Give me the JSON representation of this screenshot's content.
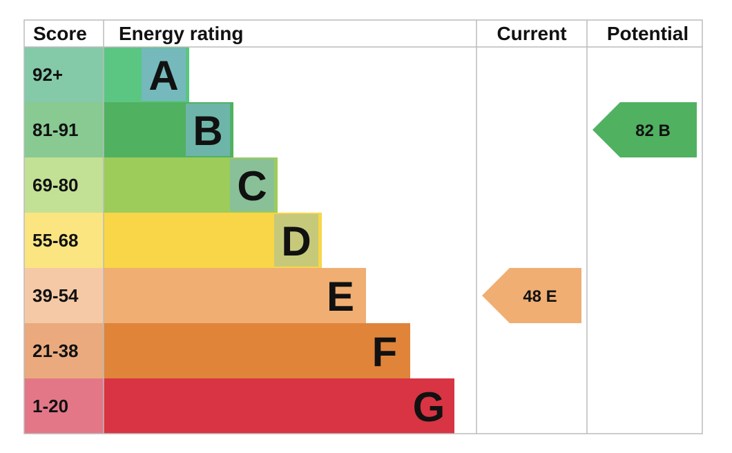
{
  "chart_data": {
    "type": "bar",
    "headers": {
      "score": "Score",
      "rating": "Energy rating",
      "current": "Current",
      "potential": "Potential"
    },
    "bands": [
      {
        "letter": "A",
        "range": "92+",
        "color": "#5ac682",
        "tint": "#84c9a8"
      },
      {
        "letter": "B",
        "range": "81-91",
        "color": "#50b161",
        "tint": "#88ca91"
      },
      {
        "letter": "C",
        "range": "69-80",
        "color": "#9dcc5b",
        "tint": "#c2e195"
      },
      {
        "letter": "D",
        "range": "55-68",
        "color": "#f8d647",
        "tint": "#fbe581"
      },
      {
        "letter": "E",
        "range": "39-54",
        "color": "#f0ae72",
        "tint": "#f6c9a6"
      },
      {
        "letter": "F",
        "range": "21-38",
        "color": "#e0843a",
        "tint": "#eaaa7d"
      },
      {
        "letter": "G",
        "range": "1-20",
        "color": "#d83443",
        "tint": "#e37788"
      }
    ],
    "letter_highlight_color": "#7ab6c8",
    "current": {
      "value": 48,
      "letter": "E",
      "label": "48 E",
      "color": "#f0ae72"
    },
    "potential": {
      "value": 82,
      "letter": "B",
      "label": "82 B",
      "color": "#50b161"
    }
  }
}
